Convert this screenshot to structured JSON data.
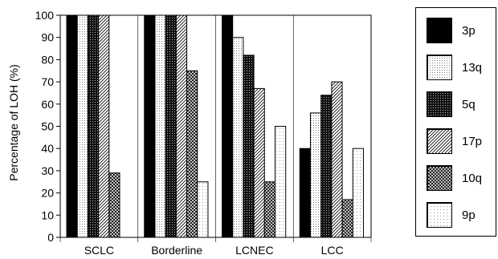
{
  "chart_data": {
    "type": "bar",
    "ylabel": "Percentage of LOH (%)",
    "xlabel": "",
    "ylim": [
      0,
      100
    ],
    "yticks": [
      0,
      10,
      20,
      30,
      40,
      50,
      60,
      70,
      80,
      90,
      100
    ],
    "grid": "vertical separators between categories",
    "legend_placement": "right",
    "categories": [
      "SCLC",
      "Borderline",
      "LCNEC",
      "LCC"
    ],
    "series": [
      {
        "name": "3p",
        "pattern": "solid-black",
        "values": [
          100,
          100,
          100,
          40
        ]
      },
      {
        "name": "13q",
        "pattern": "fine-dots",
        "values": [
          100,
          100,
          90,
          56
        ]
      },
      {
        "name": "5q",
        "pattern": "dark-dense-dots",
        "values": [
          100,
          100,
          82,
          64
        ]
      },
      {
        "name": "17p",
        "pattern": "diagonal-hatch",
        "values": [
          100,
          100,
          67,
          70
        ]
      },
      {
        "name": "10q",
        "pattern": "crosshatch",
        "values": [
          29,
          75,
          25,
          17
        ]
      },
      {
        "name": "9p",
        "pattern": "sparse-dots",
        "values": [
          0,
          25,
          50,
          40
        ]
      }
    ]
  }
}
